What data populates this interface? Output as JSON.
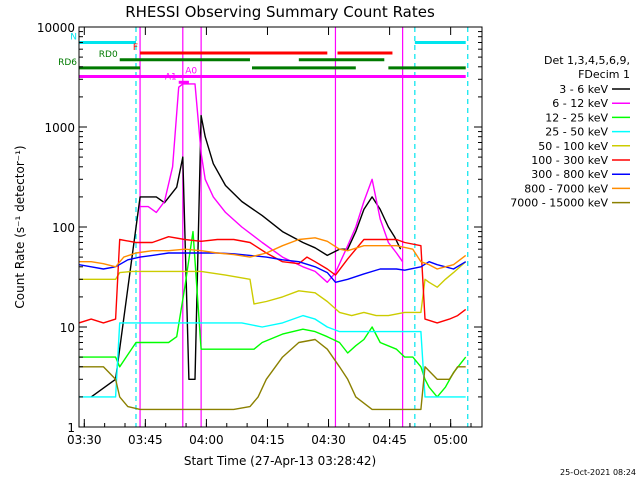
{
  "chart_data": {
    "type": "line",
    "title": "RHESSI Observing Summary Count Rates",
    "xlabel": "Start Time (27-Apr-13 03:28:42)",
    "ylabel": "Count Rate (s⁻¹ detector⁻¹)",
    "yscale": "log",
    "ylim": [
      1,
      10000
    ],
    "xlim_minutes": [
      0,
      99
    ],
    "x_ticks": [
      "03:30",
      "03:45",
      "04:00",
      "04:15",
      "04:30",
      "04:45",
      "05:00"
    ],
    "y_ticks": [
      "1",
      "10",
      "100",
      "1000",
      "10000"
    ],
    "date_stamp": "25-Oct-2021 08:24",
    "legend": {
      "title_line1": "Det 1,3,4,5,6,9,",
      "title_line2": "FDecim 1",
      "placement": "right"
    },
    "flags": [
      {
        "label": "N",
        "color": "#00e5ee",
        "y": 7000,
        "segments": [
          [
            0,
            14
          ],
          [
            82.5,
            95
          ]
        ]
      },
      {
        "label": "F",
        "color": "#ff0000",
        "y": 5500,
        "segments": [
          [
            15,
            61
          ],
          [
            63.5,
            77
          ]
        ]
      },
      {
        "label": "RD0",
        "color": "#007a00",
        "y": 4700,
        "segments": [
          [
            10,
            42
          ],
          [
            54,
            75
          ]
        ]
      },
      {
        "label": "RD6",
        "color": "#007a00",
        "y": 3900,
        "segments": [
          [
            0,
            15
          ],
          [
            42.5,
            68
          ],
          [
            76,
            95
          ]
        ]
      },
      {
        "label": "A1",
        "color": "#ff00ff",
        "y": 2800,
        "segments": [
          [
            24.5,
            27
          ]
        ]
      },
      {
        "label": "A0",
        "color": "#ff00ff",
        "y": 3200,
        "segments": [
          [
            0,
            95
          ]
        ]
      }
    ],
    "markers": [
      {
        "color": "#00e5ee",
        "x": [
          14,
          82.5,
          95.5
        ]
      },
      {
        "color": "#ff00ff",
        "x": [
          15,
          25.5,
          30,
          63,
          79.5
        ]
      }
    ],
    "series": [
      {
        "name": "3 - 6 keV",
        "color": "#000000",
        "x": [
          3,
          9,
          15,
          19,
          21,
          24,
          25.5,
          27,
          28.5,
          30,
          31,
          33,
          36,
          40,
          45,
          50,
          55,
          58,
          61,
          64,
          66,
          68,
          70,
          72,
          74,
          76,
          77.5,
          79
        ],
        "y": [
          2,
          3,
          200,
          200,
          175,
          250,
          500,
          3,
          3,
          1300,
          800,
          430,
          260,
          180,
          130,
          90,
          70,
          62,
          52,
          60,
          60,
          90,
          150,
          200,
          150,
          100,
          80,
          60
        ]
      },
      {
        "name": "6 - 12 keV",
        "color": "#ff00ff",
        "x": [
          15,
          17,
          19,
          21,
          23,
          24.5,
          25.5,
          27,
          28.5,
          30,
          31,
          33,
          36,
          40,
          45,
          50,
          55,
          58,
          61,
          63,
          66,
          68,
          70,
          72,
          74,
          76,
          78,
          79.5
        ],
        "y": [
          160,
          160,
          140,
          180,
          400,
          2500,
          2700,
          2700,
          2700,
          550,
          300,
          200,
          140,
          100,
          70,
          50,
          40,
          36,
          28,
          35,
          65,
          100,
          180,
          300,
          120,
          70,
          55,
          45
        ]
      },
      {
        "name": "12 - 25 keV",
        "color": "#00ff00",
        "x": [
          0,
          9,
          10,
          14,
          18,
          22,
          24,
          26,
          28,
          30,
          34,
          38,
          42,
          43,
          45,
          50,
          55,
          58,
          61,
          64,
          66,
          68,
          70,
          72,
          74,
          78,
          80,
          82,
          84,
          85,
          86,
          88,
          90,
          92,
          95
        ],
        "y": [
          5,
          5,
          4,
          7,
          7,
          7,
          8,
          25,
          90,
          6,
          6,
          6,
          6,
          6,
          7,
          8.5,
          9.5,
          9,
          8,
          7,
          5.5,
          6.5,
          7.5,
          10,
          7,
          6,
          5,
          5,
          4,
          3,
          2.5,
          2,
          2.5,
          3.5,
          5
        ]
      },
      {
        "name": "25 - 50 keV",
        "color": "#00ffff",
        "x": [
          0,
          9,
          10,
          12,
          15,
          20,
          25,
          30,
          35,
          40,
          45,
          50,
          55,
          58,
          61,
          64,
          68,
          72,
          76,
          80,
          84,
          85,
          88,
          90,
          92,
          95
        ],
        "y": [
          2,
          2,
          11,
          11,
          11,
          11,
          11,
          11,
          11,
          11,
          10,
          11,
          13,
          12,
          10,
          9,
          9,
          9,
          9,
          9,
          9,
          2,
          2,
          2,
          2,
          2
        ]
      },
      {
        "name": "50 - 100 keV",
        "color": "#cccc00",
        "x": [
          0,
          9,
          10,
          13,
          18,
          24,
          30,
          36,
          42,
          43,
          46,
          50,
          54,
          58,
          61,
          64,
          67,
          70,
          73,
          76,
          80,
          84,
          85,
          86,
          88,
          90,
          92,
          95
        ],
        "y": [
          30,
          30,
          35,
          36,
          36,
          36,
          36,
          33,
          30,
          17,
          18,
          20,
          23,
          22,
          18,
          14,
          13,
          14,
          13,
          13,
          14,
          14,
          30,
          28,
          25,
          30,
          35,
          45
        ]
      },
      {
        "name": "100 - 300 keV",
        "color": "#ff0000",
        "x": [
          0,
          3,
          6,
          9,
          10,
          14,
          18,
          22,
          26,
          30,
          34,
          38,
          42,
          46,
          50,
          54,
          56,
          58,
          61,
          63,
          66,
          70,
          74,
          78,
          80,
          84,
          85,
          88,
          91,
          93,
          95
        ],
        "y": [
          11,
          12,
          11,
          12,
          75,
          70,
          70,
          80,
          75,
          72,
          75,
          75,
          70,
          55,
          45,
          43,
          50,
          45,
          38,
          33,
          48,
          75,
          75,
          75,
          70,
          65,
          12,
          11,
          12,
          13,
          15
        ]
      },
      {
        "name": "300 - 800 keV",
        "color": "#0000ff",
        "x": [
          0,
          3,
          6,
          9,
          12,
          15,
          18,
          22,
          26,
          30,
          34,
          38,
          42,
          46,
          50,
          54,
          58,
          61,
          63,
          66,
          70,
          74,
          78,
          80,
          84,
          86,
          88,
          90,
          92,
          95
        ],
        "y": [
          42,
          40,
          38,
          40,
          47,
          50,
          52,
          55,
          55,
          55,
          55,
          54,
          52,
          50,
          47,
          45,
          40,
          35,
          28,
          30,
          34,
          38,
          38,
          37,
          40,
          45,
          42,
          40,
          38,
          45
        ]
      },
      {
        "name": "800 - 7000 keV",
        "color": "#ff8c00",
        "x": [
          0,
          3,
          6,
          9,
          11,
          14,
          18,
          22,
          26,
          30,
          34,
          38,
          42,
          46,
          50,
          54,
          58,
          61,
          64,
          66,
          70,
          74,
          78,
          82,
          84,
          86,
          88,
          90,
          92,
          95
        ],
        "y": [
          45,
          45,
          43,
          40,
          50,
          55,
          58,
          58,
          60,
          58,
          55,
          53,
          50,
          55,
          65,
          75,
          78,
          72,
          60,
          58,
          65,
          65,
          65,
          60,
          45,
          42,
          38,
          40,
          42,
          52
        ]
      },
      {
        "name": "7000 - 15000 keV",
        "color": "#8b8000",
        "x": [
          0,
          6,
          9,
          10,
          12,
          15,
          18,
          22,
          26,
          30,
          34,
          38,
          42,
          44,
          46,
          50,
          54,
          58,
          61,
          64,
          66,
          68,
          72,
          76,
          80,
          84,
          85,
          88,
          91,
          93,
          95
        ],
        "y": [
          4,
          4,
          3,
          2,
          1.6,
          1.5,
          1.5,
          1.5,
          1.5,
          1.5,
          1.5,
          1.5,
          1.6,
          2,
          3,
          5,
          7,
          7.5,
          6,
          4,
          3,
          2,
          1.5,
          1.5,
          1.5,
          1.5,
          4,
          3,
          3,
          4,
          4
        ]
      }
    ]
  }
}
